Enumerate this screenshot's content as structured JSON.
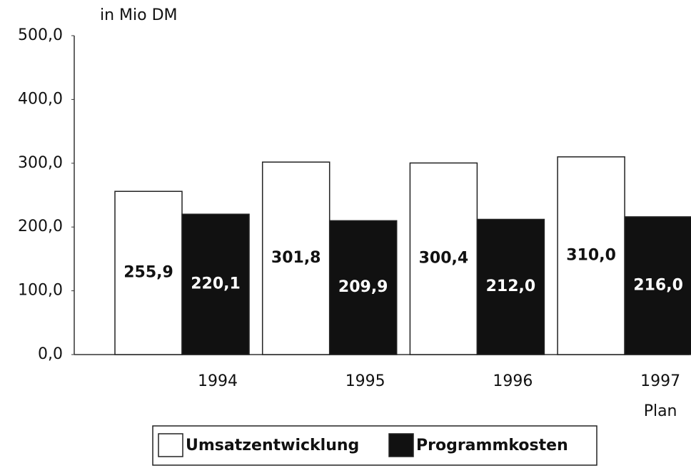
{
  "chart_data": {
    "type": "bar",
    "y_axis_label": "in Mio DM",
    "categories": [
      "1994",
      "1995",
      "1996",
      "1997"
    ],
    "annotation": "Plan",
    "series": [
      {
        "name": "Umsatzentwicklung",
        "color": "#ffffff",
        "values": [
          255.9,
          301.8,
          300.4,
          310.0
        ],
        "value_labels": [
          "255,9",
          "301,8",
          "300,4",
          "310,0"
        ]
      },
      {
        "name": "Programmkosten",
        "color": "#111111",
        "values": [
          220.1,
          209.9,
          212.0,
          216.0
        ],
        "value_labels": [
          "220,1",
          "209,9",
          "212,0",
          "216,0"
        ]
      }
    ],
    "ylim": [
      0,
      500
    ],
    "yticks": [
      {
        "value": 0,
        "label": "0,0"
      },
      {
        "value": 100,
        "label": "100,0"
      },
      {
        "value": 200,
        "label": "200,0"
      },
      {
        "value": 300,
        "label": "300,0"
      },
      {
        "value": 400,
        "label": "400,0"
      },
      {
        "value": 500,
        "label": "500,0"
      }
    ],
    "grid": false,
    "legend": "bottom"
  }
}
